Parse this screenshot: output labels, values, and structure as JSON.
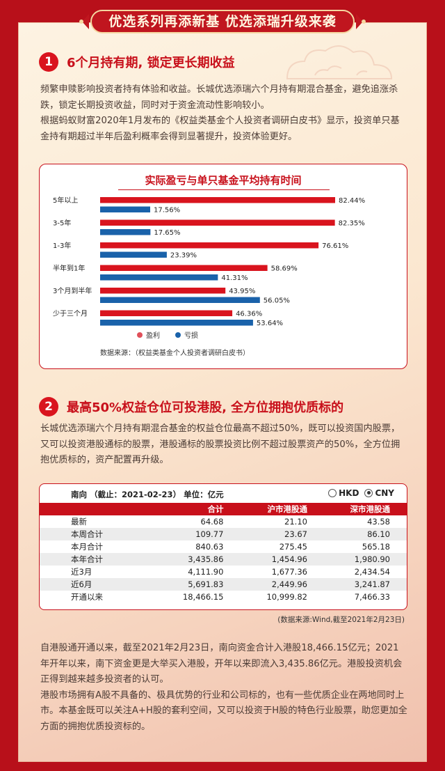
{
  "banner": {
    "title": "优选系列再添新基  优选添瑞升级来袭"
  },
  "section1": {
    "number": "1",
    "title": "6个月持有期, 锁定更长期收益",
    "paragraphs": [
      "频繁申赎影响投资者持有体验和收益。长城优选添瑞六个月持有期混合基金，避免追涨杀跌，锁定长期投资收益，同时对于资金流动性影响较小。",
      "根据蚂蚁财富2020年1月发布的《权益类基金个人投资者调研白皮书》显示，投资单只基金持有期超过半年后盈利概率会得到显著提升，投资体验更好。"
    ]
  },
  "chart_data": {
    "type": "bar",
    "orientation": "horizontal",
    "title": "实际盈亏与单只基金平均持有时间",
    "categories": [
      "5年以上",
      "3-5年",
      "1-3年",
      "半年到1年",
      "3个月到半年",
      "少于三个月"
    ],
    "series": [
      {
        "name": "盈利",
        "color": "#d9141e",
        "values": [
          82.44,
          82.35,
          76.61,
          58.69,
          43.95,
          46.36
        ],
        "labels": [
          "82.44%",
          "82.35%",
          "76.61%",
          "58.69%",
          "43.95%",
          "46.36%"
        ]
      },
      {
        "name": "亏损",
        "color": "#1a62aa",
        "values": [
          17.56,
          17.65,
          23.39,
          41.31,
          56.05,
          53.64
        ],
        "labels": [
          "17.56%",
          "17.65%",
          "23.39%",
          "41.31%",
          "56.05%",
          "53.64%"
        ]
      }
    ],
    "legend_position": "bottom",
    "source": "数据来源：（权益类基金个人投资者调研白皮书）"
  },
  "section2": {
    "number": "2",
    "title": "最高50%权益仓位可投港股, 全方位拥抱优质标的",
    "paragraphs": [
      "长城优选添瑞六个月持有期混合基金的权益仓位最高不超过50%，既可以投资国内股票，又可以投资港股通标的股票，港股通标的股票投资比例不超过股票资产的50%，全方位拥抱优质标的，资产配置再升级。"
    ]
  },
  "table": {
    "header_left": "南向 （截止：2021-02-23）   单位：亿元",
    "options": [
      {
        "label": "HKD",
        "selected": false
      },
      {
        "label": "CNY",
        "selected": true
      }
    ],
    "columns": [
      "",
      "合计",
      "沪市港股通",
      "深市港股通"
    ],
    "rows": [
      [
        "最新",
        "64.68",
        "21.10",
        "43.58"
      ],
      [
        "本周合计",
        "109.77",
        "23.67",
        "86.10"
      ],
      [
        "本月合计",
        "840.63",
        "275.45",
        "565.18"
      ],
      [
        "本年合计",
        "3,435.86",
        "1,454.96",
        "1,980.90"
      ],
      [
        "近3月",
        "4,111.90",
        "1,677.36",
        "2,434.54"
      ],
      [
        "近6月",
        "5,691.83",
        "2,449.96",
        "3,241.87"
      ],
      [
        "开通以来",
        "18,466.15",
        "10,999.82",
        "7,466.33"
      ]
    ],
    "source": "(数据来源:Wind,截至2021年2月23日)"
  },
  "section3": {
    "paragraphs": [
      "自港股通开通以来，截至2021年2月23日，南向资金合计入港股18,466.15亿元；2021年开年以来，南下资金更是大举买入港股，开年以来即流入3,435.86亿元。港股投资机会正得到越来越多投资者的认可。",
      "港股市场拥有A股不具备的、极具优势的行业和公司标的，也有一些优质企业在两地同时上市。本基金既可以关注A+H股的套利空间，又可以投资于H股的特色行业股票，助您更加全方面的拥抱优质投资标的。"
    ]
  }
}
